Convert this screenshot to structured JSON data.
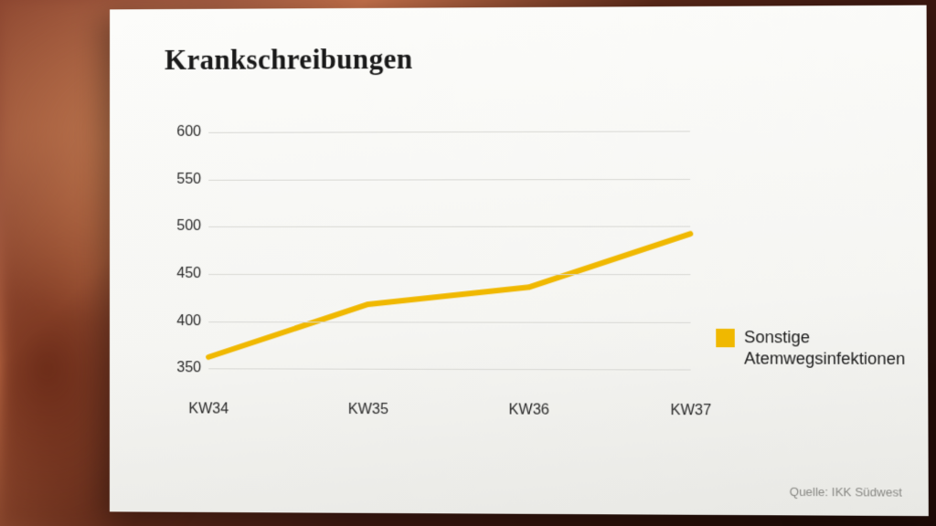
{
  "title": "Krankschreibungen",
  "chart": {
    "type": "line",
    "categories": [
      "KW34",
      "KW35",
      "KW36",
      "KW37"
    ],
    "values": [
      362,
      418,
      436,
      492
    ],
    "ylim": [
      325,
      625
    ],
    "yticks": [
      350,
      400,
      450,
      500,
      550,
      600
    ],
    "line_color": "#f0b800",
    "line_width": 6,
    "grid_color": "#d8d8d4",
    "label_fontsize": 16,
    "label_color": "#2a2a2a",
    "background_color": "#f9f9f7"
  },
  "legend": {
    "swatch_color": "#f0b800",
    "label_line1": "Sonstige",
    "label_line2": "Atemwegsinfektionen"
  },
  "source": "Quelle: IKK Südwest"
}
